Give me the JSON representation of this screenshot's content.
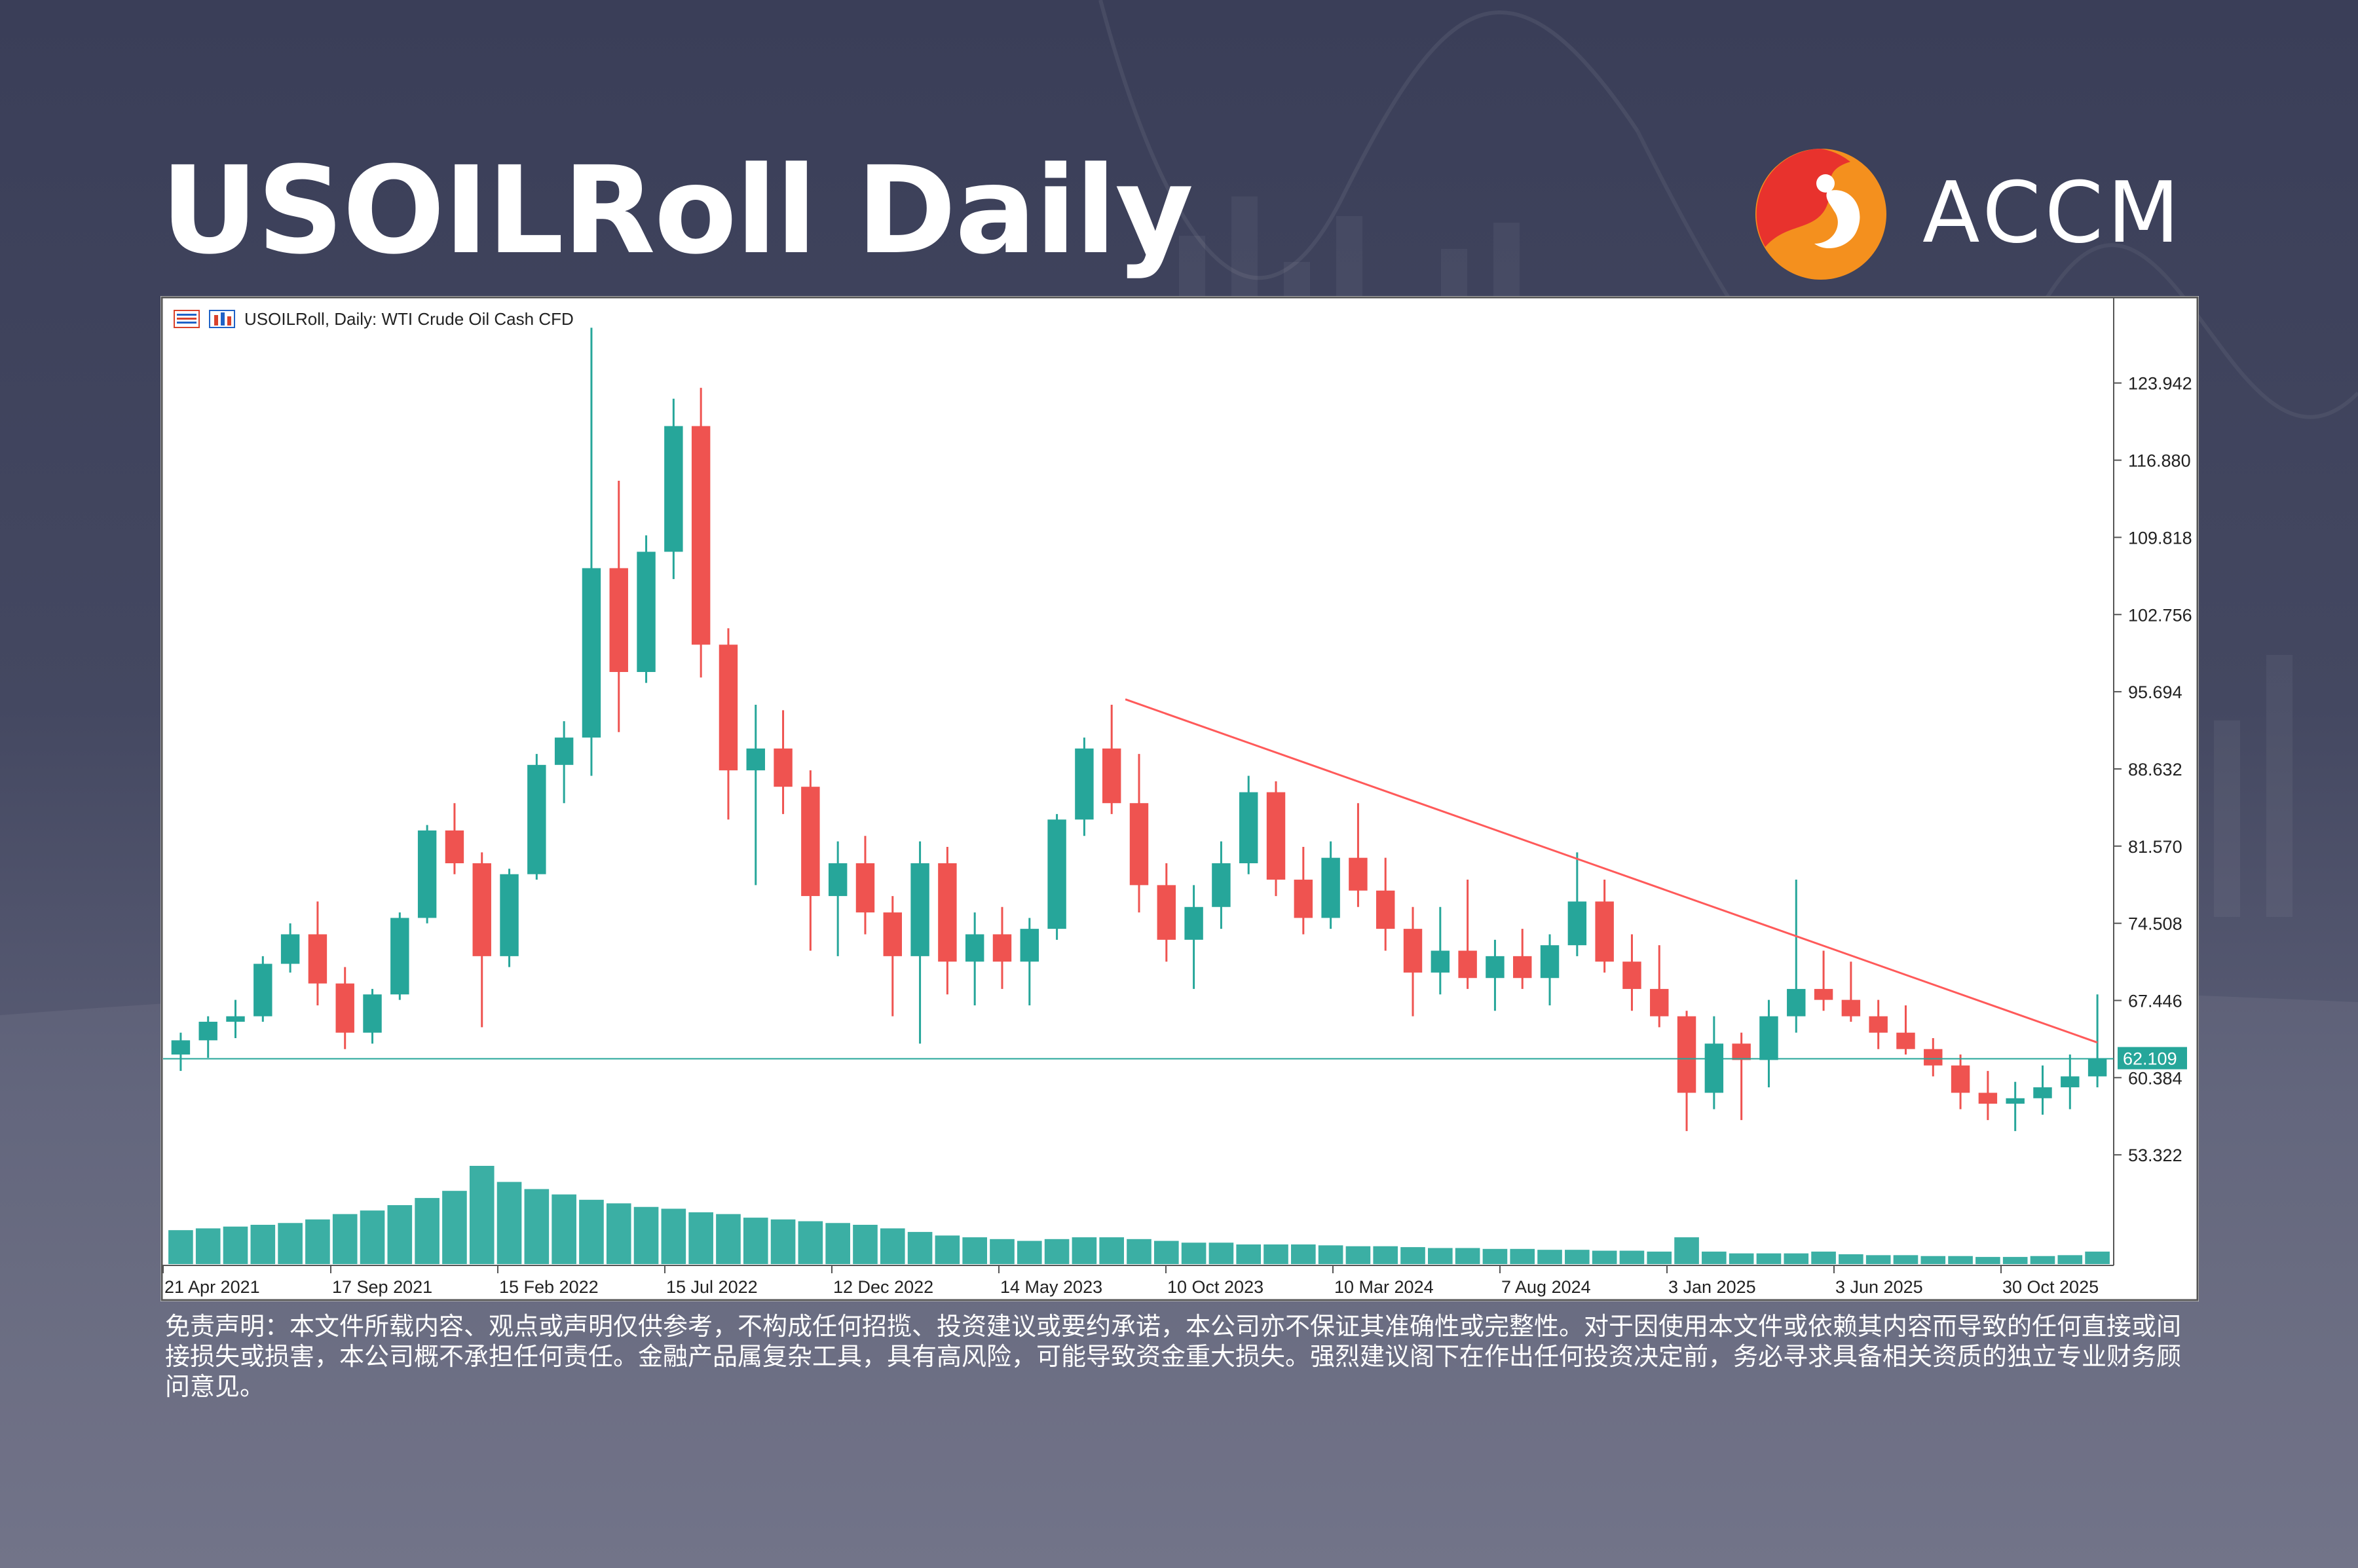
{
  "page": {
    "title": "USOILRoll Daily",
    "brand": "ACCM",
    "disclaimer": "免责声明：本文件所载内容、观点或声明仅供参考，不构成任何招揽、投资建议或要约承诺，本公司亦不保证其准确性或完整性。对于因使用本文件或依赖其内容而导致的任何直接或间接损失或损害，本公司概不承担任何责任。金融产品属复杂工具，具有高风险，可能导致资金重大损失。强烈建议阁下在作出任何投资决定前，务必寻求具备相关资质的独立专业财务顾问意见。",
    "colors": {
      "up": "#26a69a",
      "down": "#ef5350",
      "trendline": "#ff5a5a",
      "price_line": "#26a69a",
      "logo_red": "#e8322d",
      "logo_orange": "#f4901e"
    }
  },
  "chart_data": {
    "type": "candlestick",
    "header": "USOILRoll, Daily:  WTI Crude Oil Cash CFD",
    "y_ticks": [
      "123.942",
      "116.880",
      "109.818",
      "102.756",
      "95.694",
      "88.632",
      "81.570",
      "74.508",
      "67.446",
      "60.384",
      "53.322"
    ],
    "ylim": [
      48.0,
      129.5
    ],
    "x_ticks": [
      "21 Apr 2021",
      "17 Sep 2021",
      "15 Feb 2022",
      "15 Jul 2022",
      "12 Dec 2022",
      "14 May 2023",
      "10 Oct 2023",
      "10 Mar 2024",
      "7 Aug 2024",
      "3 Jan 2025",
      "3 Jun 2025",
      "30 Oct 2025"
    ],
    "current_price": 62.109,
    "current_price_label": "62.109",
    "trendline": {
      "start": {
        "x_index": 34.5,
        "y": 95.0
      },
      "end": {
        "x_index": 70.0,
        "y": 63.6
      }
    },
    "ohlc": [
      [
        62.5,
        64.5,
        61.0,
        63.8
      ],
      [
        63.8,
        66.0,
        62.2,
        65.5
      ],
      [
        65.5,
        67.5,
        64.0,
        66.0
      ],
      [
        66.0,
        71.5,
        65.5,
        70.8
      ],
      [
        70.8,
        74.5,
        70.0,
        73.5
      ],
      [
        73.5,
        76.5,
        67.0,
        69.0
      ],
      [
        69.0,
        70.5,
        63.0,
        64.5
      ],
      [
        64.5,
        68.5,
        63.5,
        68.0
      ],
      [
        68.0,
        75.5,
        67.5,
        75.0
      ],
      [
        75.0,
        83.5,
        74.5,
        83.0
      ],
      [
        83.0,
        85.5,
        79.0,
        80.0
      ],
      [
        80.0,
        81.0,
        65.0,
        71.5
      ],
      [
        71.5,
        79.5,
        70.5,
        79.0
      ],
      [
        79.0,
        90.0,
        78.5,
        89.0
      ],
      [
        89.0,
        93.0,
        85.5,
        91.5
      ],
      [
        91.5,
        129.0,
        88.0,
        107.0
      ],
      [
        107.0,
        115.0,
        92.0,
        97.5
      ],
      [
        97.5,
        110.0,
        96.5,
        108.5
      ],
      [
        108.5,
        122.5,
        106.0,
        120.0
      ],
      [
        120.0,
        123.5,
        97.0,
        100.0
      ],
      [
        100.0,
        101.5,
        84.0,
        88.5
      ],
      [
        88.5,
        94.5,
        78.0,
        90.5
      ],
      [
        90.5,
        94.0,
        84.5,
        87.0
      ],
      [
        87.0,
        88.5,
        72.0,
        77.0
      ],
      [
        77.0,
        82.0,
        71.5,
        80.0
      ],
      [
        80.0,
        82.5,
        73.5,
        75.5
      ],
      [
        75.5,
        77.0,
        66.0,
        71.5
      ],
      [
        71.5,
        82.0,
        63.5,
        80.0
      ],
      [
        80.0,
        81.5,
        68.0,
        71.0
      ],
      [
        71.0,
        75.5,
        67.0,
        73.5
      ],
      [
        73.5,
        76.0,
        68.5,
        71.0
      ],
      [
        71.0,
        75.0,
        67.0,
        74.0
      ],
      [
        74.0,
        84.5,
        73.0,
        84.0
      ],
      [
        84.0,
        91.5,
        82.5,
        90.5
      ],
      [
        90.5,
        94.5,
        84.5,
        85.5
      ],
      [
        85.5,
        90.0,
        75.5,
        78.0
      ],
      [
        78.0,
        80.0,
        71.0,
        73.0
      ],
      [
        73.0,
        78.0,
        68.5,
        76.0
      ],
      [
        76.0,
        82.0,
        74.0,
        80.0
      ],
      [
        80.0,
        88.0,
        79.0,
        86.5
      ],
      [
        86.5,
        87.5,
        77.0,
        78.5
      ],
      [
        78.5,
        81.5,
        73.5,
        75.0
      ],
      [
        75.0,
        82.0,
        74.0,
        80.5
      ],
      [
        80.5,
        85.5,
        76.0,
        77.5
      ],
      [
        77.5,
        80.5,
        72.0,
        74.0
      ],
      [
        74.0,
        76.0,
        66.0,
        70.0
      ],
      [
        70.0,
        76.0,
        68.0,
        72.0
      ],
      [
        72.0,
        78.5,
        68.5,
        69.5
      ],
      [
        69.5,
        73.0,
        66.5,
        71.5
      ],
      [
        71.5,
        74.0,
        68.5,
        69.5
      ],
      [
        69.5,
        73.5,
        67.0,
        72.5
      ],
      [
        72.5,
        81.0,
        71.5,
        76.5
      ],
      [
        76.5,
        78.5,
        70.0,
        71.0
      ],
      [
        71.0,
        73.5,
        66.5,
        68.5
      ],
      [
        68.5,
        72.5,
        65.0,
        66.0
      ],
      [
        66.0,
        66.5,
        55.5,
        59.0
      ],
      [
        59.0,
        66.0,
        57.5,
        63.5
      ],
      [
        63.5,
        64.5,
        56.5,
        62.0
      ],
      [
        62.0,
        67.5,
        59.5,
        66.0
      ],
      [
        66.0,
        78.5,
        64.5,
        68.5
      ],
      [
        68.5,
        72.0,
        66.5,
        67.5
      ],
      [
        67.5,
        71.0,
        65.5,
        66.0
      ],
      [
        66.0,
        67.5,
        63.0,
        64.5
      ],
      [
        64.5,
        67.0,
        62.5,
        63.0
      ],
      [
        63.0,
        64.0,
        60.5,
        61.5
      ],
      [
        61.5,
        62.5,
        57.5,
        59.0
      ],
      [
        59.0,
        61.0,
        56.5,
        58.0
      ],
      [
        58.0,
        60.0,
        55.5,
        58.5
      ],
      [
        58.5,
        61.5,
        57.0,
        59.5
      ],
      [
        59.5,
        62.5,
        57.5,
        60.5
      ],
      [
        60.5,
        68.0,
        59.5,
        62.1
      ]
    ],
    "volume": [
      38,
      40,
      42,
      44,
      46,
      50,
      56,
      60,
      66,
      74,
      82,
      110,
      92,
      84,
      78,
      72,
      68,
      64,
      62,
      58,
      56,
      52,
      50,
      48,
      46,
      44,
      40,
      36,
      32,
      30,
      28,
      26,
      28,
      30,
      30,
      28,
      26,
      24,
      24,
      22,
      22,
      22,
      21,
      20,
      20,
      19,
      18,
      18,
      17,
      17,
      16,
      16,
      15,
      15,
      14,
      30,
      14,
      12,
      12,
      12,
      14,
      11,
      10,
      10,
      9,
      9,
      8,
      8,
      9,
      10,
      14
    ]
  }
}
